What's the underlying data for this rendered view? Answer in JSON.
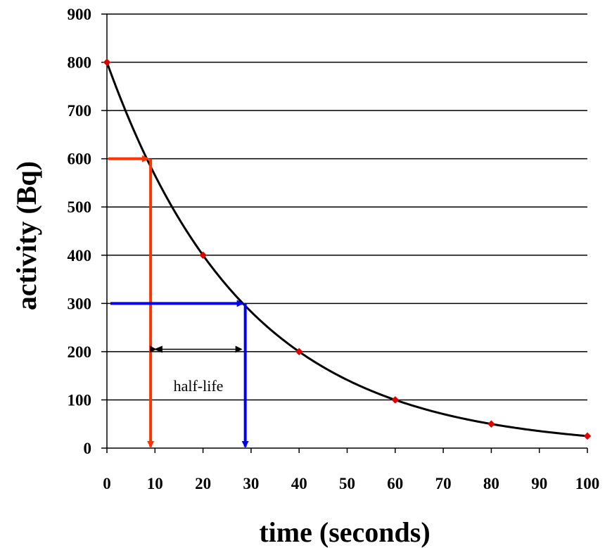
{
  "chart_data": {
    "type": "scatter",
    "xlabel": "time (seconds)",
    "ylabel": "activity (Bq)",
    "xlim": [
      0,
      100
    ],
    "ylim": [
      0,
      900
    ],
    "xticks": [
      "0",
      "10",
      "20",
      "30",
      "40",
      "50",
      "60",
      "70",
      "80",
      "90",
      "100"
    ],
    "yticks": [
      "0",
      "100",
      "200",
      "300",
      "400",
      "500",
      "600",
      "700",
      "800",
      "900"
    ],
    "grid": "horizontal",
    "series": [
      {
        "type": "scatter",
        "marker": "diamond",
        "color": "#e00000",
        "x": [
          0,
          20,
          40,
          60,
          80,
          100
        ],
        "y": [
          800,
          400,
          200,
          100,
          50,
          25
        ]
      },
      {
        "type": "line",
        "color": "#000000",
        "initial": 800,
        "half_life": 20
      }
    ],
    "annotations": {
      "red_marker": {
        "color": "#ff3300",
        "y": 600,
        "x": 8.8
      },
      "blue_marker": {
        "color": "#0000ee",
        "y": 300,
        "x": 28.5
      },
      "half_life_span": {
        "x_start": 9.5,
        "x_end": 28.5,
        "y": 205,
        "label": "half-life"
      }
    }
  }
}
